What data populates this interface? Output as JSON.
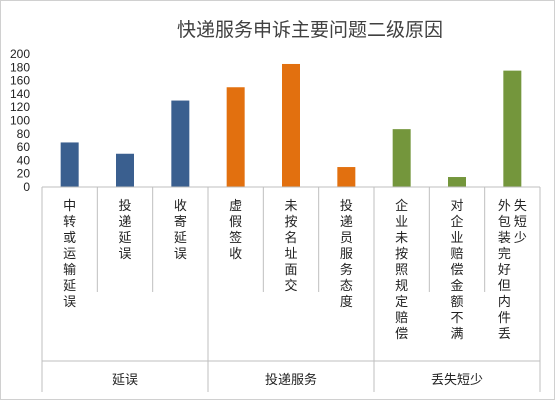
{
  "chart_data": {
    "type": "bar",
    "title": "快递服务申诉主要问题二级原因",
    "xlabel": "",
    "ylabel": "",
    "ylim": [
      0,
      200
    ],
    "yticks": [
      0,
      20,
      40,
      60,
      80,
      100,
      120,
      140,
      160,
      180,
      200
    ],
    "grid": false,
    "legend": "none",
    "categories": [
      "中转或运输延误",
      "投递延误",
      "收寄延误",
      "虚假签收",
      "未按名址面交",
      "投递员服务态度",
      "企业未按照规定赔偿",
      "对企业赔偿金额不满",
      "外包装完好但内件丢失短少"
    ],
    "values": [
      67,
      50,
      130,
      150,
      185,
      30,
      87,
      15,
      175
    ],
    "groups": [
      {
        "label": "延误",
        "count": 3,
        "color": "#3A5F8F"
      },
      {
        "label": "投递服务",
        "count": 3,
        "color": "#E2700F"
      },
      {
        "label": "丢失短少",
        "count": 3,
        "color": "#74963C"
      }
    ]
  }
}
